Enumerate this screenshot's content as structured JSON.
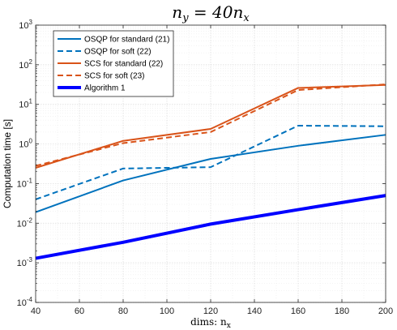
{
  "chart_data": {
    "type": "line",
    "title": "n_y = 40n_x",
    "xlabel": "dims: n_x",
    "ylabel": "Computation time [s]",
    "x": [
      40,
      80,
      120,
      160,
      200
    ],
    "xlim": [
      40,
      200
    ],
    "ylim": [
      0.0001,
      1000
    ],
    "yscale": "log",
    "grid": true,
    "legend_position": "top-left",
    "xticks": [
      "40",
      "60",
      "80",
      "100",
      "120",
      "140",
      "160",
      "180",
      "200"
    ],
    "yticks": [
      "10^-4",
      "10^-3",
      "10^-2",
      "10^-1",
      "10^0",
      "10^1",
      "10^2",
      "10^3"
    ],
    "series": [
      {
        "name": "OSQP for standard (21)",
        "values": [
          0.019,
          0.12,
          0.42,
          0.9,
          1.7
        ],
        "color": "#0072BD",
        "style": "solid",
        "width": "normal"
      },
      {
        "name": "OSQP for soft (22)",
        "values": [
          0.04,
          0.24,
          0.26,
          2.9,
          2.8
        ],
        "color": "#0072BD",
        "style": "dashed",
        "width": "normal"
      },
      {
        "name": "SCS for standard (22)",
        "values": [
          0.25,
          1.2,
          2.4,
          26,
          31
        ],
        "color": "#D95319",
        "style": "solid",
        "width": "normal"
      },
      {
        "name": "SCS for soft (23)",
        "values": [
          0.28,
          1.05,
          2.0,
          23,
          32
        ],
        "color": "#D95319",
        "style": "dashed",
        "width": "normal"
      },
      {
        "name": "Algorithm 1",
        "values": [
          0.0013,
          0.0033,
          0.0095,
          0.022,
          0.05
        ],
        "color": "#0000FF",
        "style": "solid",
        "width": "thick"
      }
    ]
  }
}
